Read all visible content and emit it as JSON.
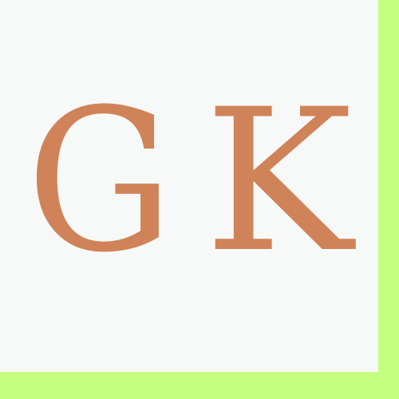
{
  "monogram": {
    "letters": [
      "G",
      "K"
    ],
    "text": "GK",
    "color": "#d08358"
  },
  "colors": {
    "panel_background": "#f7f9f8",
    "frame_accent": "#c5ff80"
  }
}
